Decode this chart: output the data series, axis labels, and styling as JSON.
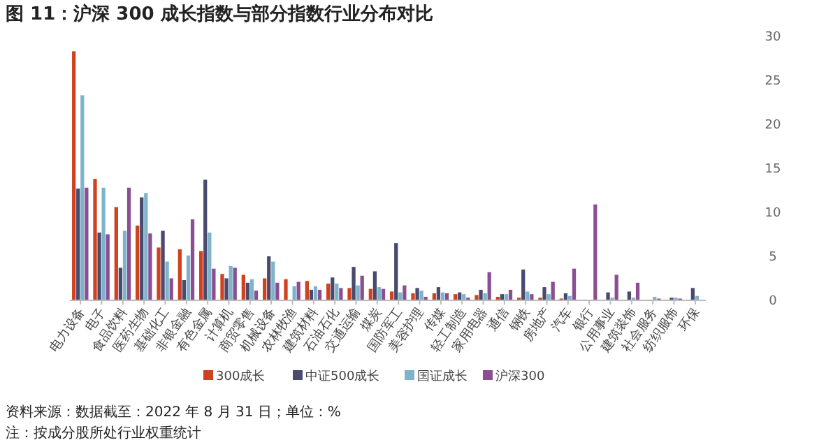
{
  "chart_data": {
    "type": "bar",
    "title": "图 11：沪深 300 成长指数与部分指数行业分布对比",
    "categories": [
      "电力设备",
      "电子",
      "食品饮料",
      "医药生物",
      "基础化工",
      "非银金融",
      "有色金属",
      "计算机",
      "商贸零售",
      "机械设备",
      "农林牧渔",
      "建筑材料",
      "石油石化",
      "交通运输",
      "煤炭",
      "国防军工",
      "美容护理",
      "传媒",
      "轻工制造",
      "家用电器",
      "通信",
      "钢铁",
      "房地产",
      "汽车",
      "银行",
      "公用事业",
      "建筑装饰",
      "社会服务",
      "纺织服饰",
      "环保"
    ],
    "series": [
      {
        "name": "300成长",
        "color": "#d0421f",
        "values": [
          28.3,
          13.8,
          10.6,
          8.5,
          6.0,
          5.8,
          5.6,
          3.0,
          2.9,
          2.5,
          2.4,
          2.2,
          1.9,
          1.4,
          1.3,
          1.0,
          0.8,
          0.8,
          0.7,
          0.6,
          0.4,
          0.3,
          0.3,
          0.2,
          0,
          0,
          0,
          0,
          0,
          0
        ]
      },
      {
        "name": "中证500成长",
        "color": "#4a4a6e",
        "values": [
          12.7,
          7.7,
          3.7,
          11.7,
          7.9,
          2.3,
          13.7,
          2.5,
          2.0,
          5.0,
          0,
          1.2,
          2.6,
          3.8,
          3.3,
          6.5,
          1.4,
          1.5,
          0.9,
          1.2,
          0.7,
          3.5,
          1.5,
          0.8,
          0,
          0.9,
          1.0,
          0,
          0.3,
          1.4
        ]
      },
      {
        "name": "国证成长",
        "color": "#7fb3cc",
        "values": [
          23.3,
          12.8,
          7.9,
          12.2,
          4.4,
          5.1,
          7.7,
          3.9,
          2.4,
          4.4,
          1.6,
          1.6,
          1.9,
          1.7,
          1.5,
          0.9,
          1.1,
          0.9,
          0.7,
          0.8,
          0.7,
          1.0,
          0.7,
          0.5,
          0,
          0.3,
          0.3,
          0.4,
          0.3,
          0.5
        ]
      },
      {
        "name": "沪深300",
        "color": "#8a4f93",
        "values": [
          12.8,
          7.5,
          12.8,
          7.6,
          2.5,
          9.2,
          3.6,
          3.7,
          1.1,
          2.0,
          2.1,
          1.2,
          1.4,
          2.8,
          1.3,
          1.7,
          0.4,
          0.8,
          0.3,
          3.2,
          1.2,
          0.7,
          2.1,
          3.6,
          10.9,
          2.9,
          2.0,
          0.2,
          0.2,
          0
        ]
      }
    ],
    "ylim": [
      0,
      30
    ],
    "yticks": [
      0,
      5,
      10,
      15,
      20,
      25,
      30
    ],
    "grid": false,
    "legend": "bottom",
    "annotations": [
      "资料来源：数据截至：2022 年 8 月 31 日；单位：%",
      "注：按成分股所处行业权重统计"
    ]
  }
}
